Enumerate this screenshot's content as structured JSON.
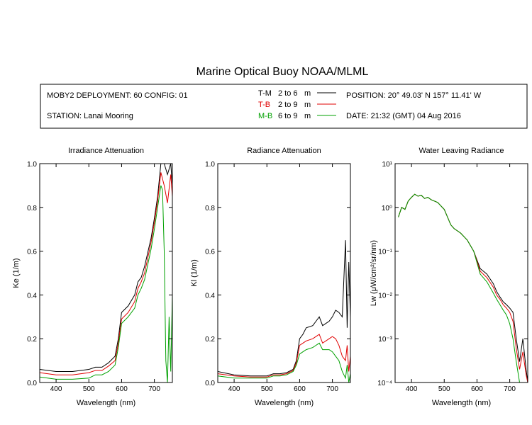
{
  "title": "Marine Optical Buoy NOAA/MLML",
  "header": {
    "deployment": "MOBY2 DEPLOYMENT: 60 CONFIG: 01",
    "station": "STATION: Lanai Mooring",
    "position": "POSITION: 20° 49.03' N   157° 11.41' W",
    "date": "DATE: 21:32 (GMT) 04 Aug 2016",
    "legend": [
      {
        "code": "T-M",
        "range": "2 to 6",
        "unit": "m",
        "color": "#000000"
      },
      {
        "code": "T-B",
        "range": "2 to 9",
        "unit": "m",
        "color": "#e00000"
      },
      {
        "code": "M-B",
        "range": "6 to 9",
        "unit": "m",
        "color": "#00a000"
      }
    ]
  },
  "chart_data": [
    {
      "type": "line",
      "title": "Irradiance Attenuation",
      "xlabel": "Wavelength (nm)",
      "ylabel": "Ke  (1/m)",
      "xlim": [
        350,
        755
      ],
      "ylim": [
        0,
        1
      ],
      "xticks": [
        "400",
        "500",
        "600",
        "700"
      ],
      "yticks": [
        "0.0",
        "0.2",
        "0.4",
        "0.6",
        "0.8",
        "1.0"
      ],
      "series": [
        {
          "name": "T-M",
          "color": "#000000",
          "x": [
            350,
            400,
            450,
            500,
            520,
            540,
            560,
            580,
            590,
            600,
            620,
            640,
            650,
            660,
            670,
            690,
            700,
            710,
            720,
            730,
            740,
            750,
            755
          ],
          "y": [
            0.06,
            0.05,
            0.05,
            0.06,
            0.07,
            0.07,
            0.09,
            0.12,
            0.2,
            0.32,
            0.35,
            0.4,
            0.46,
            0.48,
            0.53,
            0.66,
            0.75,
            0.85,
            1.0,
            1.0,
            0.95,
            1.0,
            0.9
          ]
        },
        {
          "name": "T-B",
          "color": "#e00000",
          "x": [
            350,
            400,
            450,
            500,
            520,
            540,
            560,
            580,
            590,
            600,
            620,
            640,
            650,
            660,
            670,
            690,
            700,
            710,
            720,
            730,
            740,
            750,
            755
          ],
          "y": [
            0.045,
            0.035,
            0.035,
            0.045,
            0.055,
            0.055,
            0.075,
            0.1,
            0.18,
            0.29,
            0.32,
            0.37,
            0.43,
            0.46,
            0.5,
            0.64,
            0.73,
            0.83,
            0.96,
            0.9,
            0.82,
            0.95,
            0.85
          ]
        },
        {
          "name": "M-B",
          "color": "#00a000",
          "x": [
            350,
            400,
            450,
            500,
            520,
            540,
            560,
            580,
            590,
            600,
            620,
            640,
            650,
            660,
            670,
            690,
            700,
            710,
            720,
            725,
            730,
            735,
            740,
            745,
            750,
            755
          ],
          "y": [
            0.025,
            0.015,
            0.015,
            0.02,
            0.035,
            0.035,
            0.05,
            0.08,
            0.16,
            0.27,
            0.3,
            0.34,
            0.4,
            0.43,
            0.47,
            0.61,
            0.7,
            0.8,
            0.9,
            0.88,
            0.6,
            0.1,
            0.0,
            0.3,
            0.05,
            0.4
          ]
        }
      ]
    },
    {
      "type": "line",
      "title": "Radiance Attenuation",
      "xlabel": "Wavelength (nm)",
      "ylabel": "Kl  (1/m)",
      "xlim": [
        350,
        755
      ],
      "ylim": [
        0,
        1
      ],
      "xticks": [
        "400",
        "500",
        "600",
        "700"
      ],
      "yticks": [
        "0.0",
        "0.2",
        "0.4",
        "0.6",
        "0.8",
        "1.0"
      ],
      "series": [
        {
          "name": "T-M",
          "color": "#000000",
          "x": [
            350,
            400,
            450,
            500,
            520,
            540,
            560,
            580,
            590,
            600,
            610,
            620,
            640,
            650,
            660,
            670,
            690,
            700,
            710,
            720,
            730,
            740,
            745,
            750,
            755
          ],
          "y": [
            0.05,
            0.035,
            0.03,
            0.03,
            0.04,
            0.04,
            0.045,
            0.06,
            0.1,
            0.2,
            0.22,
            0.25,
            0.26,
            0.28,
            0.3,
            0.26,
            0.28,
            0.3,
            0.33,
            0.32,
            0.3,
            0.65,
            0.25,
            0.55,
            0.3
          ]
        },
        {
          "name": "T-B",
          "color": "#e00000",
          "x": [
            350,
            400,
            450,
            500,
            520,
            540,
            560,
            580,
            590,
            600,
            610,
            620,
            640,
            650,
            660,
            670,
            690,
            700,
            710,
            720,
            730,
            740,
            745,
            750,
            755
          ],
          "y": [
            0.04,
            0.03,
            0.025,
            0.025,
            0.035,
            0.035,
            0.04,
            0.055,
            0.09,
            0.17,
            0.18,
            0.19,
            0.2,
            0.21,
            0.22,
            0.18,
            0.2,
            0.21,
            0.2,
            0.17,
            0.12,
            0.1,
            0.17,
            0.05,
            0.12
          ]
        },
        {
          "name": "M-B",
          "color": "#00a000",
          "x": [
            350,
            400,
            450,
            500,
            520,
            540,
            560,
            580,
            590,
            600,
            610,
            620,
            640,
            650,
            660,
            670,
            690,
            700,
            710,
            720,
            730,
            740,
            745,
            750,
            755
          ],
          "y": [
            0.03,
            0.02,
            0.02,
            0.02,
            0.03,
            0.03,
            0.035,
            0.05,
            0.08,
            0.13,
            0.14,
            0.15,
            0.16,
            0.17,
            0.18,
            0.15,
            0.15,
            0.14,
            0.12,
            0.1,
            0.05,
            0.02,
            0.08,
            0.0,
            0.04
          ]
        }
      ]
    },
    {
      "type": "line",
      "title": "Water Leaving Radiance",
      "xlabel": "Wavelength (nm)",
      "ylabel": "Lw  (μW/cm²/sr/nm)",
      "xlim": [
        350,
        755
      ],
      "ylim": [
        0.0001,
        10
      ],
      "yscale": "log",
      "xticks": [
        "400",
        "500",
        "600",
        "700"
      ],
      "yticks": [
        "10¹",
        "10⁰",
        "10⁻¹",
        "10⁻²",
        "10⁻³",
        "10⁻⁴"
      ],
      "series": [
        {
          "name": "T-M",
          "color": "#000000",
          "x": [
            360,
            370,
            380,
            390,
            400,
            410,
            420,
            430,
            440,
            450,
            460,
            480,
            500,
            520,
            530,
            550,
            570,
            590,
            610,
            630,
            650,
            660,
            670,
            680,
            690,
            700,
            710,
            720,
            730,
            740,
            750,
            755
          ],
          "y": [
            0.6,
            1.0,
            0.9,
            1.4,
            1.7,
            2.0,
            1.8,
            1.9,
            1.6,
            1.7,
            1.5,
            1.3,
            0.9,
            0.4,
            0.33,
            0.26,
            0.18,
            0.1,
            0.04,
            0.03,
            0.018,
            0.012,
            0.009,
            0.007,
            0.006,
            0.005,
            0.004,
            0.001,
            0.0003,
            0.001,
            0.0002,
            0.0001
          ]
        },
        {
          "name": "T-B",
          "color": "#e00000",
          "x": [
            360,
            370,
            380,
            390,
            400,
            410,
            420,
            430,
            440,
            450,
            460,
            480,
            500,
            520,
            530,
            550,
            570,
            590,
            610,
            630,
            650,
            660,
            670,
            680,
            690,
            700,
            710,
            720,
            730,
            740,
            750,
            755
          ],
          "y": [
            0.6,
            1.0,
            0.9,
            1.4,
            1.7,
            2.0,
            1.8,
            1.9,
            1.6,
            1.7,
            1.5,
            1.3,
            0.9,
            0.4,
            0.33,
            0.26,
            0.18,
            0.1,
            0.035,
            0.025,
            0.015,
            0.01,
            0.008,
            0.006,
            0.005,
            0.004,
            0.0025,
            0.0006,
            0.0002,
            0.0005,
            0.00015,
            0.0001
          ]
        },
        {
          "name": "M-B",
          "color": "#00a000",
          "x": [
            360,
            370,
            380,
            390,
            400,
            410,
            420,
            430,
            440,
            450,
            460,
            480,
            500,
            520,
            530,
            550,
            570,
            590,
            610,
            630,
            650,
            660,
            670,
            680,
            690,
            700,
            710,
            720,
            730,
            740,
            750
          ],
          "y": [
            0.6,
            1.0,
            0.9,
            1.4,
            1.7,
            2.0,
            1.8,
            1.9,
            1.6,
            1.7,
            1.5,
            1.3,
            0.9,
            0.4,
            0.33,
            0.26,
            0.18,
            0.1,
            0.03,
            0.02,
            0.011,
            0.008,
            0.006,
            0.0045,
            0.0035,
            0.0022,
            0.001,
            0.0003,
            0.0001,
            0.0001,
            0.0001
          ]
        }
      ]
    }
  ]
}
